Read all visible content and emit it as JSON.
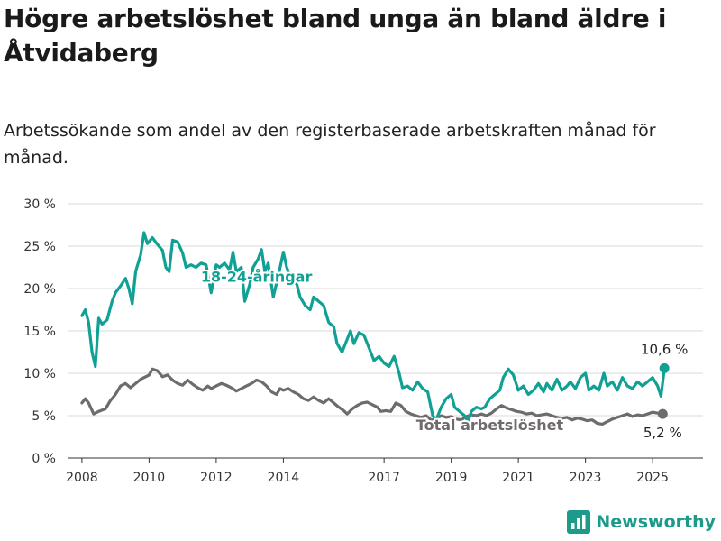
{
  "title": "Högre arbetslöshet bland unga än bland äldre i Åtvidaberg",
  "subtitle": "Arbetssökande som andel av den registerbaserade arbetskraften månad för månad.",
  "brand": "Newsworthy",
  "colors": {
    "youth": "#11a094",
    "total": "#6e6a6e",
    "grid": "#d9d9d9",
    "brand": "#1c9a8a"
  },
  "chart_data": {
    "type": "line",
    "ylim": [
      0,
      30
    ],
    "yticks": [
      0,
      5,
      10,
      15,
      20,
      25,
      30
    ],
    "ytick_labels": [
      "0 %",
      "5 %",
      "10 %",
      "15 %",
      "20 %",
      "25 %",
      "30 %"
    ],
    "xlim": [
      2007.6,
      2026.5
    ],
    "xticks": [
      2008,
      2010,
      2012,
      2014,
      2017,
      2019,
      2021,
      2023,
      2025
    ],
    "xtick_labels": [
      "2008",
      "2010",
      "2012",
      "2014",
      "2017",
      "2019",
      "2021",
      "2023",
      "2025"
    ],
    "grid": true,
    "series": [
      {
        "name": "18-24-åringar",
        "color": "#11a094",
        "end_label": "10,6 %",
        "points": [
          [
            2008.0,
            16.8
          ],
          [
            2008.1,
            17.5
          ],
          [
            2008.2,
            16.0
          ],
          [
            2008.3,
            12.5
          ],
          [
            2008.4,
            10.8
          ],
          [
            2008.5,
            16.5
          ],
          [
            2008.6,
            15.8
          ],
          [
            2008.75,
            16.3
          ],
          [
            2008.9,
            18.5
          ],
          [
            2009.0,
            19.5
          ],
          [
            2009.15,
            20.3
          ],
          [
            2009.3,
            21.2
          ],
          [
            2009.4,
            20.0
          ],
          [
            2009.5,
            18.2
          ],
          [
            2009.6,
            22.0
          ],
          [
            2009.75,
            24.0
          ],
          [
            2009.85,
            26.6
          ],
          [
            2009.95,
            25.3
          ],
          [
            2010.1,
            26.0
          ],
          [
            2010.25,
            25.2
          ],
          [
            2010.4,
            24.5
          ],
          [
            2010.5,
            22.5
          ],
          [
            2010.6,
            22.0
          ],
          [
            2010.7,
            25.7
          ],
          [
            2010.85,
            25.5
          ],
          [
            2011.0,
            24.2
          ],
          [
            2011.1,
            22.5
          ],
          [
            2011.25,
            22.8
          ],
          [
            2011.4,
            22.5
          ],
          [
            2011.55,
            23.0
          ],
          [
            2011.7,
            22.8
          ],
          [
            2011.85,
            19.5
          ],
          [
            2012.0,
            22.8
          ],
          [
            2012.1,
            22.5
          ],
          [
            2012.25,
            23.0
          ],
          [
            2012.4,
            22.2
          ],
          [
            2012.5,
            24.3
          ],
          [
            2012.6,
            22.0
          ],
          [
            2012.75,
            22.5
          ],
          [
            2012.85,
            18.5
          ],
          [
            2013.0,
            20.5
          ],
          [
            2013.1,
            22.5
          ],
          [
            2013.25,
            23.5
          ],
          [
            2013.35,
            24.6
          ],
          [
            2013.45,
            22.0
          ],
          [
            2013.55,
            23.0
          ],
          [
            2013.7,
            19.0
          ],
          [
            2013.85,
            21.5
          ],
          [
            2014.0,
            24.3
          ],
          [
            2014.1,
            22.5
          ],
          [
            2014.25,
            21.0
          ],
          [
            2014.4,
            20.5
          ],
          [
            2014.5,
            19.0
          ],
          [
            2014.65,
            18.0
          ],
          [
            2014.8,
            17.5
          ],
          [
            2014.9,
            19.0
          ],
          [
            2015.05,
            18.5
          ],
          [
            2015.2,
            18.0
          ],
          [
            2015.35,
            16.0
          ],
          [
            2015.5,
            15.5
          ],
          [
            2015.6,
            13.5
          ],
          [
            2015.75,
            12.5
          ],
          [
            2015.85,
            13.5
          ],
          [
            2016.0,
            15.0
          ],
          [
            2016.1,
            13.5
          ],
          [
            2016.25,
            14.8
          ],
          [
            2016.4,
            14.5
          ],
          [
            2016.55,
            13.0
          ],
          [
            2016.7,
            11.5
          ],
          [
            2016.85,
            12.0
          ],
          [
            2017.0,
            11.2
          ],
          [
            2017.15,
            10.8
          ],
          [
            2017.3,
            12.0
          ],
          [
            2017.45,
            10.0
          ],
          [
            2017.55,
            8.3
          ],
          [
            2017.7,
            8.5
          ],
          [
            2017.85,
            8.0
          ],
          [
            2018.0,
            9.0
          ],
          [
            2018.15,
            8.2
          ],
          [
            2018.3,
            7.8
          ],
          [
            2018.45,
            5.0
          ],
          [
            2018.55,
            4.5
          ],
          [
            2018.7,
            6.0
          ],
          [
            2018.85,
            7.0
          ],
          [
            2019.0,
            7.5
          ],
          [
            2019.1,
            6.0
          ],
          [
            2019.25,
            5.5
          ],
          [
            2019.4,
            5.0
          ],
          [
            2019.5,
            4.3
          ],
          [
            2019.6,
            5.5
          ],
          [
            2019.75,
            6.0
          ],
          [
            2019.9,
            5.8
          ],
          [
            2020.0,
            6.0
          ],
          [
            2020.15,
            7.0
          ],
          [
            2020.3,
            7.5
          ],
          [
            2020.45,
            8.0
          ],
          [
            2020.55,
            9.5
          ],
          [
            2020.7,
            10.5
          ],
          [
            2020.85,
            9.8
          ],
          [
            2021.0,
            8.0
          ],
          [
            2021.15,
            8.5
          ],
          [
            2021.3,
            7.5
          ],
          [
            2021.45,
            8.0
          ],
          [
            2021.6,
            8.8
          ],
          [
            2021.75,
            7.8
          ],
          [
            2021.85,
            8.8
          ],
          [
            2022.0,
            8.0
          ],
          [
            2022.15,
            9.3
          ],
          [
            2022.3,
            8.0
          ],
          [
            2022.45,
            8.5
          ],
          [
            2022.55,
            9.0
          ],
          [
            2022.7,
            8.2
          ],
          [
            2022.85,
            9.5
          ],
          [
            2023.0,
            10.0
          ],
          [
            2023.1,
            8.0
          ],
          [
            2023.25,
            8.5
          ],
          [
            2023.4,
            8.0
          ],
          [
            2023.55,
            10.0
          ],
          [
            2023.65,
            8.5
          ],
          [
            2023.8,
            9.0
          ],
          [
            2023.95,
            8.0
          ],
          [
            2024.1,
            9.5
          ],
          [
            2024.25,
            8.5
          ],
          [
            2024.4,
            8.2
          ],
          [
            2024.55,
            9.0
          ],
          [
            2024.7,
            8.5
          ],
          [
            2024.85,
            9.0
          ],
          [
            2025.0,
            9.5
          ],
          [
            2025.15,
            8.5
          ],
          [
            2025.25,
            7.3
          ],
          [
            2025.35,
            10.6
          ]
        ]
      },
      {
        "name": "Total arbetslöshet",
        "color": "#6e6a6e",
        "end_label": "5,2 %",
        "points": [
          [
            2008.0,
            6.5
          ],
          [
            2008.1,
            7.0
          ],
          [
            2008.2,
            6.5
          ],
          [
            2008.35,
            5.2
          ],
          [
            2008.5,
            5.5
          ],
          [
            2008.7,
            5.8
          ],
          [
            2008.85,
            6.8
          ],
          [
            2009.0,
            7.5
          ],
          [
            2009.15,
            8.5
          ],
          [
            2009.3,
            8.8
          ],
          [
            2009.45,
            8.3
          ],
          [
            2009.6,
            8.8
          ],
          [
            2009.75,
            9.3
          ],
          [
            2009.9,
            9.6
          ],
          [
            2010.0,
            9.8
          ],
          [
            2010.1,
            10.5
          ],
          [
            2010.25,
            10.3
          ],
          [
            2010.4,
            9.6
          ],
          [
            2010.55,
            9.8
          ],
          [
            2010.7,
            9.2
          ],
          [
            2010.85,
            8.8
          ],
          [
            2011.0,
            8.6
          ],
          [
            2011.15,
            9.2
          ],
          [
            2011.3,
            8.7
          ],
          [
            2011.45,
            8.3
          ],
          [
            2011.6,
            8.0
          ],
          [
            2011.75,
            8.5
          ],
          [
            2011.85,
            8.2
          ],
          [
            2012.0,
            8.5
          ],
          [
            2012.15,
            8.8
          ],
          [
            2012.3,
            8.6
          ],
          [
            2012.45,
            8.3
          ],
          [
            2012.6,
            7.9
          ],
          [
            2012.75,
            8.2
          ],
          [
            2012.9,
            8.5
          ],
          [
            2013.05,
            8.8
          ],
          [
            2013.2,
            9.2
          ],
          [
            2013.35,
            9.0
          ],
          [
            2013.5,
            8.5
          ],
          [
            2013.65,
            7.8
          ],
          [
            2013.8,
            7.5
          ],
          [
            2013.9,
            8.2
          ],
          [
            2014.0,
            8.0
          ],
          [
            2014.15,
            8.2
          ],
          [
            2014.3,
            7.8
          ],
          [
            2014.45,
            7.5
          ],
          [
            2014.6,
            7.0
          ],
          [
            2014.75,
            6.8
          ],
          [
            2014.9,
            7.2
          ],
          [
            2015.05,
            6.8
          ],
          [
            2015.2,
            6.5
          ],
          [
            2015.35,
            7.0
          ],
          [
            2015.5,
            6.5
          ],
          [
            2015.65,
            6.0
          ],
          [
            2015.8,
            5.6
          ],
          [
            2015.9,
            5.2
          ],
          [
            2016.05,
            5.8
          ],
          [
            2016.2,
            6.2
          ],
          [
            2016.35,
            6.5
          ],
          [
            2016.5,
            6.6
          ],
          [
            2016.65,
            6.3
          ],
          [
            2016.8,
            6.0
          ],
          [
            2016.9,
            5.5
          ],
          [
            2017.05,
            5.6
          ],
          [
            2017.2,
            5.5
          ],
          [
            2017.35,
            6.5
          ],
          [
            2017.5,
            6.2
          ],
          [
            2017.65,
            5.5
          ],
          [
            2017.8,
            5.2
          ],
          [
            2017.95,
            5.0
          ],
          [
            2018.1,
            4.8
          ],
          [
            2018.25,
            5.0
          ],
          [
            2018.4,
            4.5
          ],
          [
            2018.55,
            4.6
          ],
          [
            2018.7,
            5.0
          ],
          [
            2018.85,
            4.8
          ],
          [
            2019.0,
            4.9
          ],
          [
            2019.15,
            4.6
          ],
          [
            2019.3,
            4.5
          ],
          [
            2019.45,
            4.9
          ],
          [
            2019.6,
            5.1
          ],
          [
            2019.75,
            5.0
          ],
          [
            2019.9,
            5.2
          ],
          [
            2020.05,
            5.0
          ],
          [
            2020.2,
            5.3
          ],
          [
            2020.35,
            5.8
          ],
          [
            2020.5,
            6.2
          ],
          [
            2020.65,
            5.9
          ],
          [
            2020.8,
            5.7
          ],
          [
            2020.95,
            5.5
          ],
          [
            2021.1,
            5.4
          ],
          [
            2021.25,
            5.2
          ],
          [
            2021.4,
            5.3
          ],
          [
            2021.55,
            5.0
          ],
          [
            2021.7,
            5.1
          ],
          [
            2021.85,
            5.2
          ],
          [
            2022.0,
            5.0
          ],
          [
            2022.15,
            4.8
          ],
          [
            2022.3,
            4.7
          ],
          [
            2022.45,
            4.8
          ],
          [
            2022.6,
            4.5
          ],
          [
            2022.75,
            4.7
          ],
          [
            2022.9,
            4.6
          ],
          [
            2023.05,
            4.4
          ],
          [
            2023.2,
            4.5
          ],
          [
            2023.35,
            4.1
          ],
          [
            2023.5,
            4.0
          ],
          [
            2023.65,
            4.3
          ],
          [
            2023.8,
            4.6
          ],
          [
            2023.95,
            4.8
          ],
          [
            2024.1,
            5.0
          ],
          [
            2024.25,
            5.2
          ],
          [
            2024.4,
            4.9
          ],
          [
            2024.55,
            5.1
          ],
          [
            2024.7,
            5.0
          ],
          [
            2024.85,
            5.2
          ],
          [
            2025.0,
            5.4
          ],
          [
            2025.15,
            5.3
          ],
          [
            2025.3,
            5.2
          ]
        ]
      }
    ]
  }
}
